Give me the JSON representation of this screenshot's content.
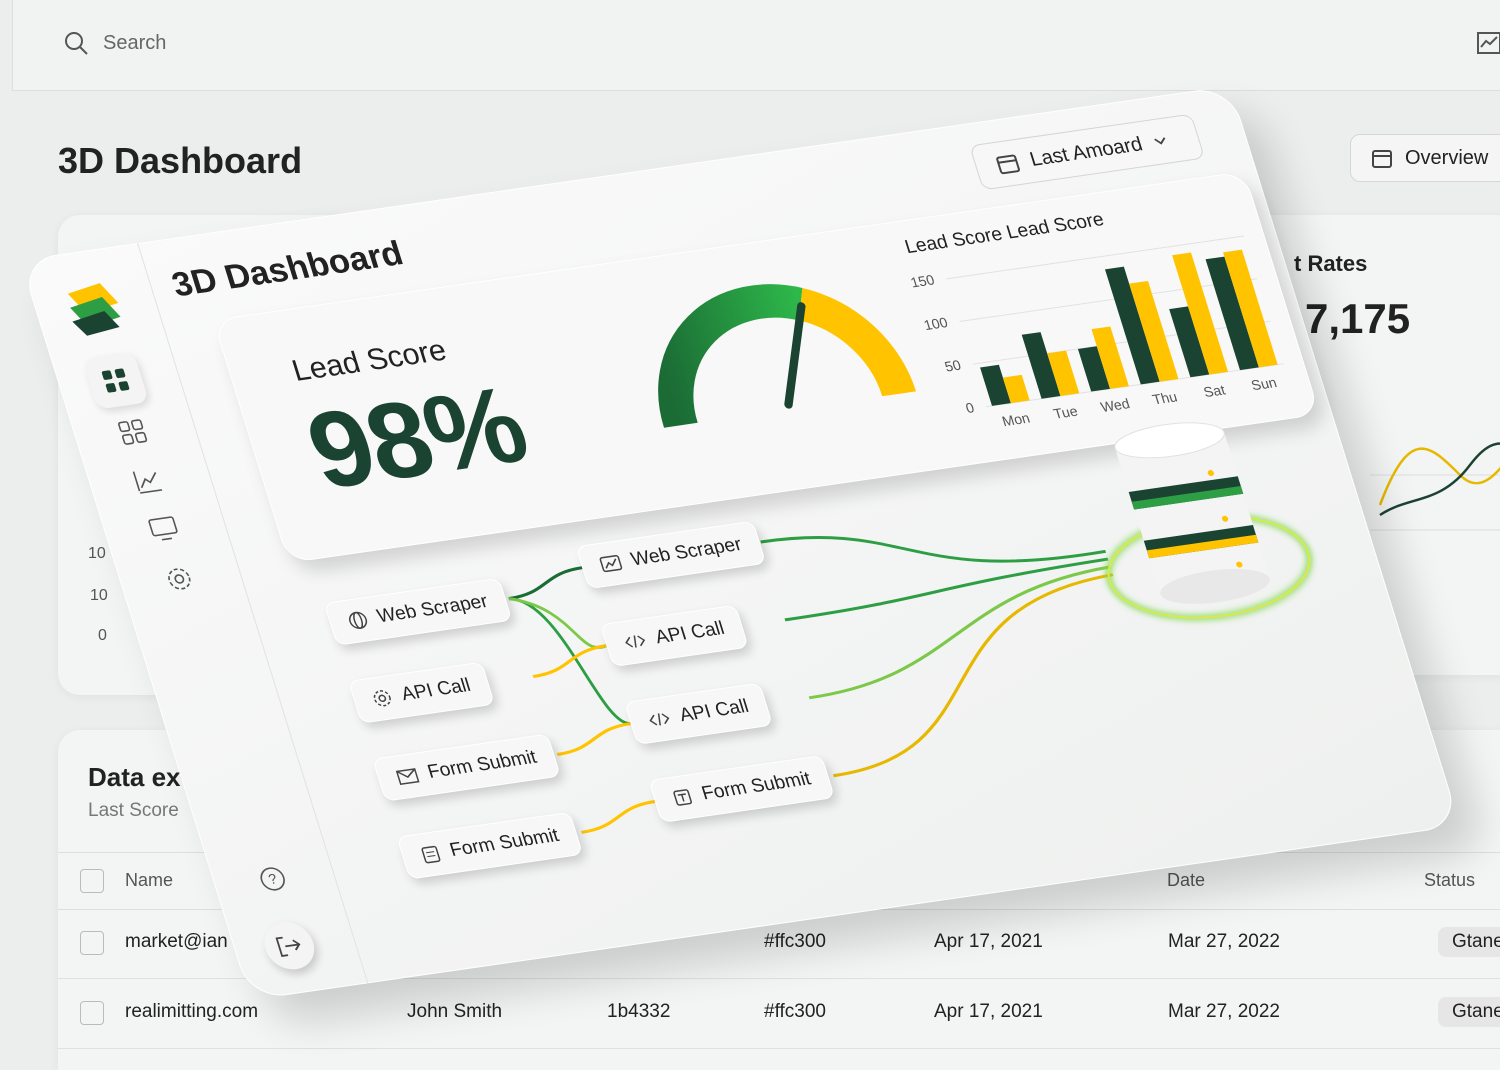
{
  "search": {
    "placeholder": "Search"
  },
  "background": {
    "title": "3D Dashboard",
    "overview_button": "Overview",
    "rates_card": {
      "title": "t Rates",
      "value": "7,175"
    },
    "axis_labels": [
      "10",
      "10",
      "0"
    ],
    "table": {
      "title": "Data ex",
      "subtitle": "Last Score",
      "headers": [
        "Name",
        "Date",
        "Status"
      ],
      "rows": [
        [
          "market@ian",
          null,
          null,
          "#ffc300",
          "Apr 17, 2021",
          "Mar 27, 2022",
          "Gtanes"
        ],
        [
          "realimitting.com",
          "John Smith",
          "1b4332",
          "#ffc300",
          "Apr 17, 2021",
          "Mar 27, 2022",
          "Gtanes"
        ]
      ]
    }
  },
  "card": {
    "title": "3D Dashboard",
    "date_button": "Last Amoard",
    "lead_score": {
      "label": "Lead Score",
      "value": "98%"
    },
    "flow": {
      "left_nodes": [
        "Web Scraper",
        "API Call",
        "Form Submit",
        "Form Submit"
      ],
      "right_nodes": [
        "Web Scraper",
        "API Call",
        "API Call",
        "Form Submit"
      ]
    }
  },
  "chart_data": {
    "type": "bar",
    "title": "Lead Score Lead Score",
    "categories": [
      "Mon",
      "Tue",
      "Wed",
      "Thu",
      "Sat",
      "Sun"
    ],
    "series": [
      {
        "color": "#1b4332",
        "values": [
          45,
          75,
          50,
          135,
          80,
          130
        ]
      },
      {
        "color": "#ffc300",
        "values": [
          30,
          50,
          70,
          115,
          140,
          135
        ]
      }
    ],
    "ylim": [
      0,
      160
    ],
    "yticks": [
      0,
      50,
      100,
      150
    ],
    "grid": true
  }
}
